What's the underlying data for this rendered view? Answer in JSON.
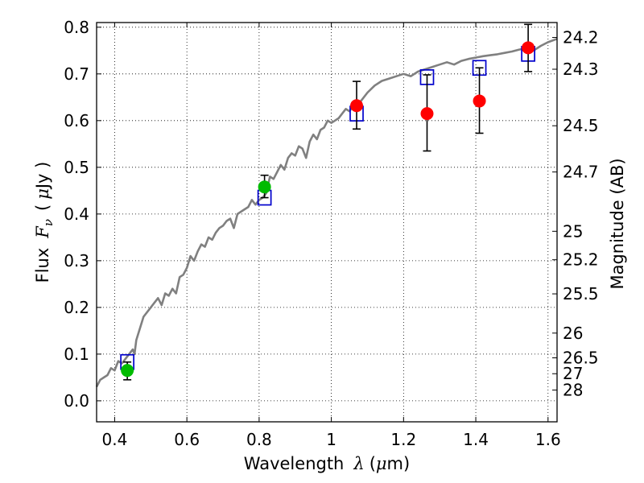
{
  "chart_data": {
    "type": "scatter",
    "title": "",
    "xlabel": {
      "prefix": "Wavelength",
      "symbol": "λ",
      "unit_open": "(",
      "unit_mu": "μ",
      "unit_rest": "m)"
    },
    "ylabel": {
      "prefix": "Flux",
      "symbol": "F",
      "subscript": "ν",
      "unit_open": "(",
      "unit_mu": "μ",
      "unit_rest": "Jy )"
    },
    "y2label": "Magnitude (AB)",
    "xlim": [
      0.35,
      1.625
    ],
    "ylim": [
      -0.045,
      0.81
    ],
    "grid": true,
    "x_ticks": [
      {
        "value": 0.4,
        "label": "0.4"
      },
      {
        "value": 0.6,
        "label": "0.6"
      },
      {
        "value": 0.8,
        "label": "0.8"
      },
      {
        "value": 1.0,
        "label": "1"
      },
      {
        "value": 1.2,
        "label": "1.2"
      },
      {
        "value": 1.4,
        "label": "1.4"
      },
      {
        "value": 1.6,
        "label": "1.6"
      }
    ],
    "y_ticks": [
      {
        "value": 0.0,
        "label": "0.0"
      },
      {
        "value": 0.1,
        "label": "0.1"
      },
      {
        "value": 0.2,
        "label": "0.2"
      },
      {
        "value": 0.3,
        "label": "0.3"
      },
      {
        "value": 0.4,
        "label": "0.4"
      },
      {
        "value": 0.5,
        "label": "0.5"
      },
      {
        "value": 0.6,
        "label": "0.6"
      },
      {
        "value": 0.7,
        "label": "0.7"
      },
      {
        "value": 0.8,
        "label": "0.8"
      }
    ],
    "mag_ticks": [
      {
        "flux": 0.778,
        "label": "24.2"
      },
      {
        "flux": 0.71,
        "label": "24.3"
      },
      {
        "flux": 0.589,
        "label": "24.5"
      },
      {
        "flux": 0.49,
        "label": "24.7"
      },
      {
        "flux": 0.363,
        "label": "25"
      },
      {
        "flux": 0.302,
        "label": "25.2"
      },
      {
        "flux": 0.229,
        "label": "25.5"
      },
      {
        "flux": 0.145,
        "label": "26"
      },
      {
        "flux": 0.092,
        "label": "26.5"
      },
      {
        "flux": 0.058,
        "label": "27"
      },
      {
        "flux": 0.023,
        "label": "28"
      }
    ],
    "series": [
      {
        "kind": "line",
        "color": "#808080",
        "x": [
          0.35,
          0.36,
          0.37,
          0.38,
          0.39,
          0.4,
          0.41,
          0.42,
          0.43,
          0.44,
          0.45,
          0.455,
          0.46,
          0.47,
          0.48,
          0.49,
          0.5,
          0.51,
          0.52,
          0.53,
          0.54,
          0.55,
          0.56,
          0.57,
          0.58,
          0.59,
          0.6,
          0.61,
          0.62,
          0.63,
          0.64,
          0.65,
          0.66,
          0.67,
          0.68,
          0.69,
          0.7,
          0.71,
          0.72,
          0.73,
          0.74,
          0.75,
          0.76,
          0.77,
          0.78,
          0.79,
          0.8,
          0.81,
          0.82,
          0.83,
          0.84,
          0.85,
          0.86,
          0.87,
          0.88,
          0.89,
          0.9,
          0.91,
          0.92,
          0.93,
          0.94,
          0.95,
          0.96,
          0.97,
          0.98,
          0.99,
          1.0,
          1.01,
          1.02,
          1.03,
          1.04,
          1.05,
          1.06,
          1.07,
          1.08,
          1.1,
          1.12,
          1.14,
          1.16,
          1.18,
          1.2,
          1.22,
          1.24,
          1.26,
          1.28,
          1.3,
          1.32,
          1.34,
          1.36,
          1.38,
          1.4,
          1.42,
          1.44,
          1.46,
          1.48,
          1.5,
          1.52,
          1.54,
          1.56,
          1.58,
          1.6,
          1.625
        ],
        "y": [
          0.03,
          0.045,
          0.05,
          0.055,
          0.07,
          0.065,
          0.085,
          0.08,
          0.09,
          0.1,
          0.11,
          0.1,
          0.13,
          0.155,
          0.18,
          0.19,
          0.2,
          0.21,
          0.22,
          0.205,
          0.23,
          0.225,
          0.24,
          0.23,
          0.265,
          0.27,
          0.285,
          0.31,
          0.3,
          0.32,
          0.335,
          0.33,
          0.35,
          0.345,
          0.36,
          0.37,
          0.375,
          0.385,
          0.39,
          0.37,
          0.4,
          0.405,
          0.41,
          0.415,
          0.43,
          0.42,
          0.43,
          0.435,
          0.445,
          0.48,
          0.475,
          0.49,
          0.505,
          0.495,
          0.52,
          0.53,
          0.525,
          0.545,
          0.54,
          0.52,
          0.555,
          0.57,
          0.56,
          0.58,
          0.585,
          0.6,
          0.595,
          0.6,
          0.605,
          0.615,
          0.625,
          0.62,
          0.63,
          0.635,
          0.64,
          0.66,
          0.675,
          0.685,
          0.69,
          0.695,
          0.7,
          0.695,
          0.705,
          0.71,
          0.715,
          0.72,
          0.725,
          0.72,
          0.728,
          0.732,
          0.735,
          0.738,
          0.74,
          0.742,
          0.745,
          0.748,
          0.752,
          0.755,
          0.75,
          0.76,
          0.768,
          0.775
        ]
      },
      {
        "kind": "open-square",
        "color": "#0000cc",
        "x": [
          0.435,
          0.815,
          1.07,
          1.265,
          1.41,
          1.545
        ],
        "y": [
          0.083,
          0.435,
          0.615,
          0.693,
          0.713,
          0.743
        ]
      },
      {
        "kind": "filled-circle",
        "color": "#00bb00",
        "x": [
          0.435,
          0.815
        ],
        "y": [
          0.065,
          0.458
        ],
        "err_low": [
          0.045,
          0.435
        ],
        "err_high": [
          0.083,
          0.483
        ]
      },
      {
        "kind": "filled-circle",
        "color": "#ff0000",
        "x": [
          1.07,
          1.265,
          1.41,
          1.545
        ],
        "y": [
          0.632,
          0.615,
          0.642,
          0.756
        ],
        "err_low": [
          0.582,
          0.535,
          0.573,
          0.705
        ],
        "err_high": [
          0.684,
          0.698,
          0.713,
          0.806
        ]
      }
    ]
  }
}
